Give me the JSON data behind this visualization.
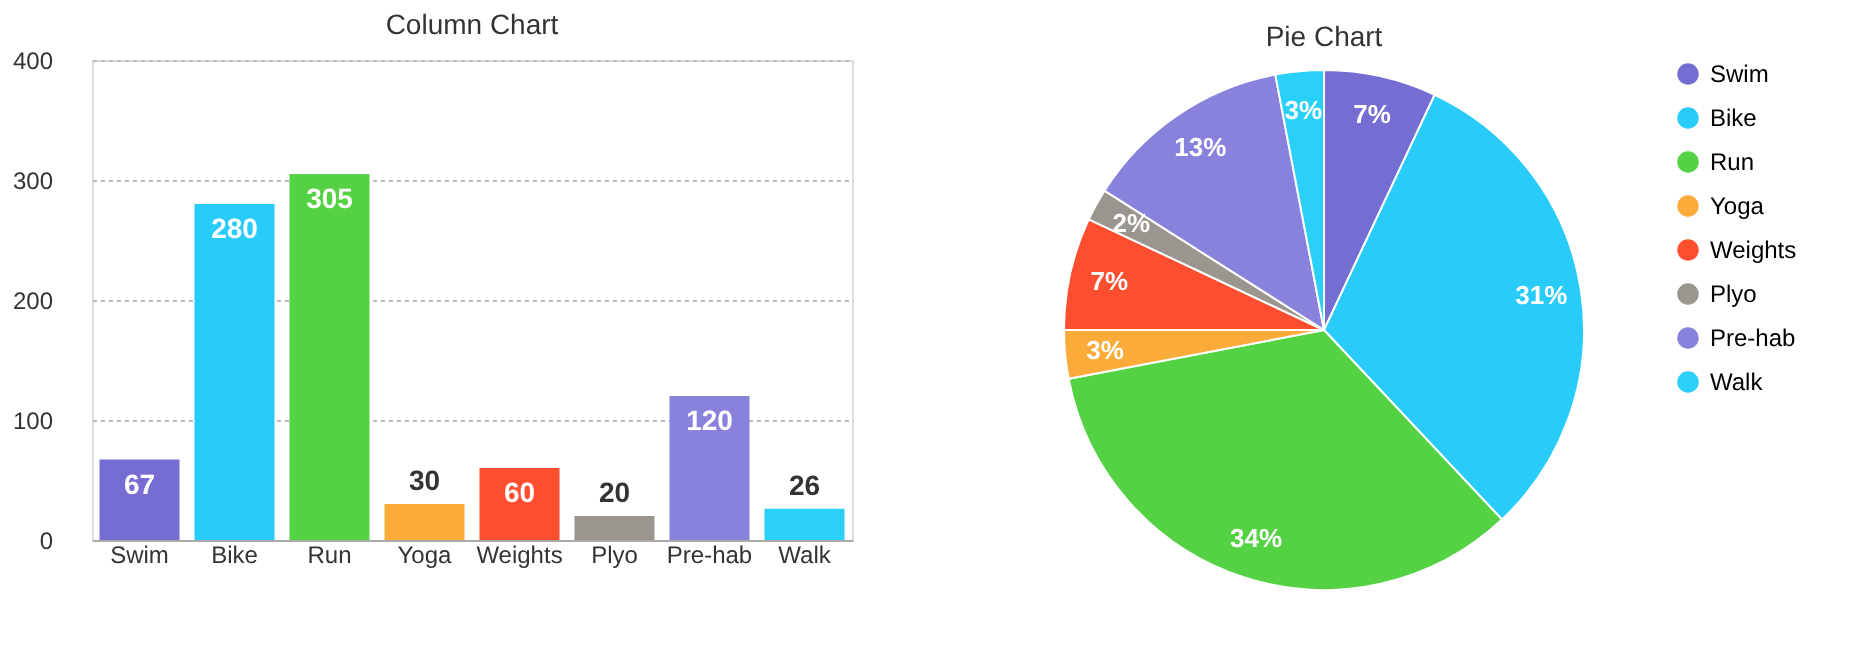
{
  "chart_data": [
    {
      "type": "bar",
      "title": "Column Chart",
      "categories": [
        "Swim",
        "Bike",
        "Run",
        "Yoga",
        "Weights",
        "Plyo",
        "Pre-hab",
        "Walk"
      ],
      "values": [
        67,
        280,
        305,
        30,
        60,
        20,
        120,
        26
      ],
      "colors": [
        "#766dd3",
        "#29ccf8",
        "#54d244",
        "#fbab3a",
        "#fd4e2f",
        "#9b958f",
        "#8882dc",
        "#2ad0f8"
      ],
      "ylim": [
        0,
        400
      ],
      "yticks": [
        0,
        100,
        200,
        300,
        400
      ],
      "grid": "y",
      "data_labels": true
    },
    {
      "type": "pie",
      "title": "Pie Chart",
      "categories": [
        "Swim",
        "Bike",
        "Run",
        "Yoga",
        "Weights",
        "Plyo",
        "Pre-hab",
        "Walk"
      ],
      "values": [
        7,
        31,
        34,
        3,
        7,
        2,
        13,
        3
      ],
      "value_labels": [
        "7%",
        "31%",
        "34%",
        "3%",
        "7%",
        "2%",
        "13%",
        "3%"
      ],
      "colors": [
        "#766dd3",
        "#29ccf8",
        "#54d244",
        "#fbab3a",
        "#fd4e2f",
        "#9b958f",
        "#8882dc",
        "#2ad0f8"
      ],
      "legend": "top right"
    }
  ]
}
